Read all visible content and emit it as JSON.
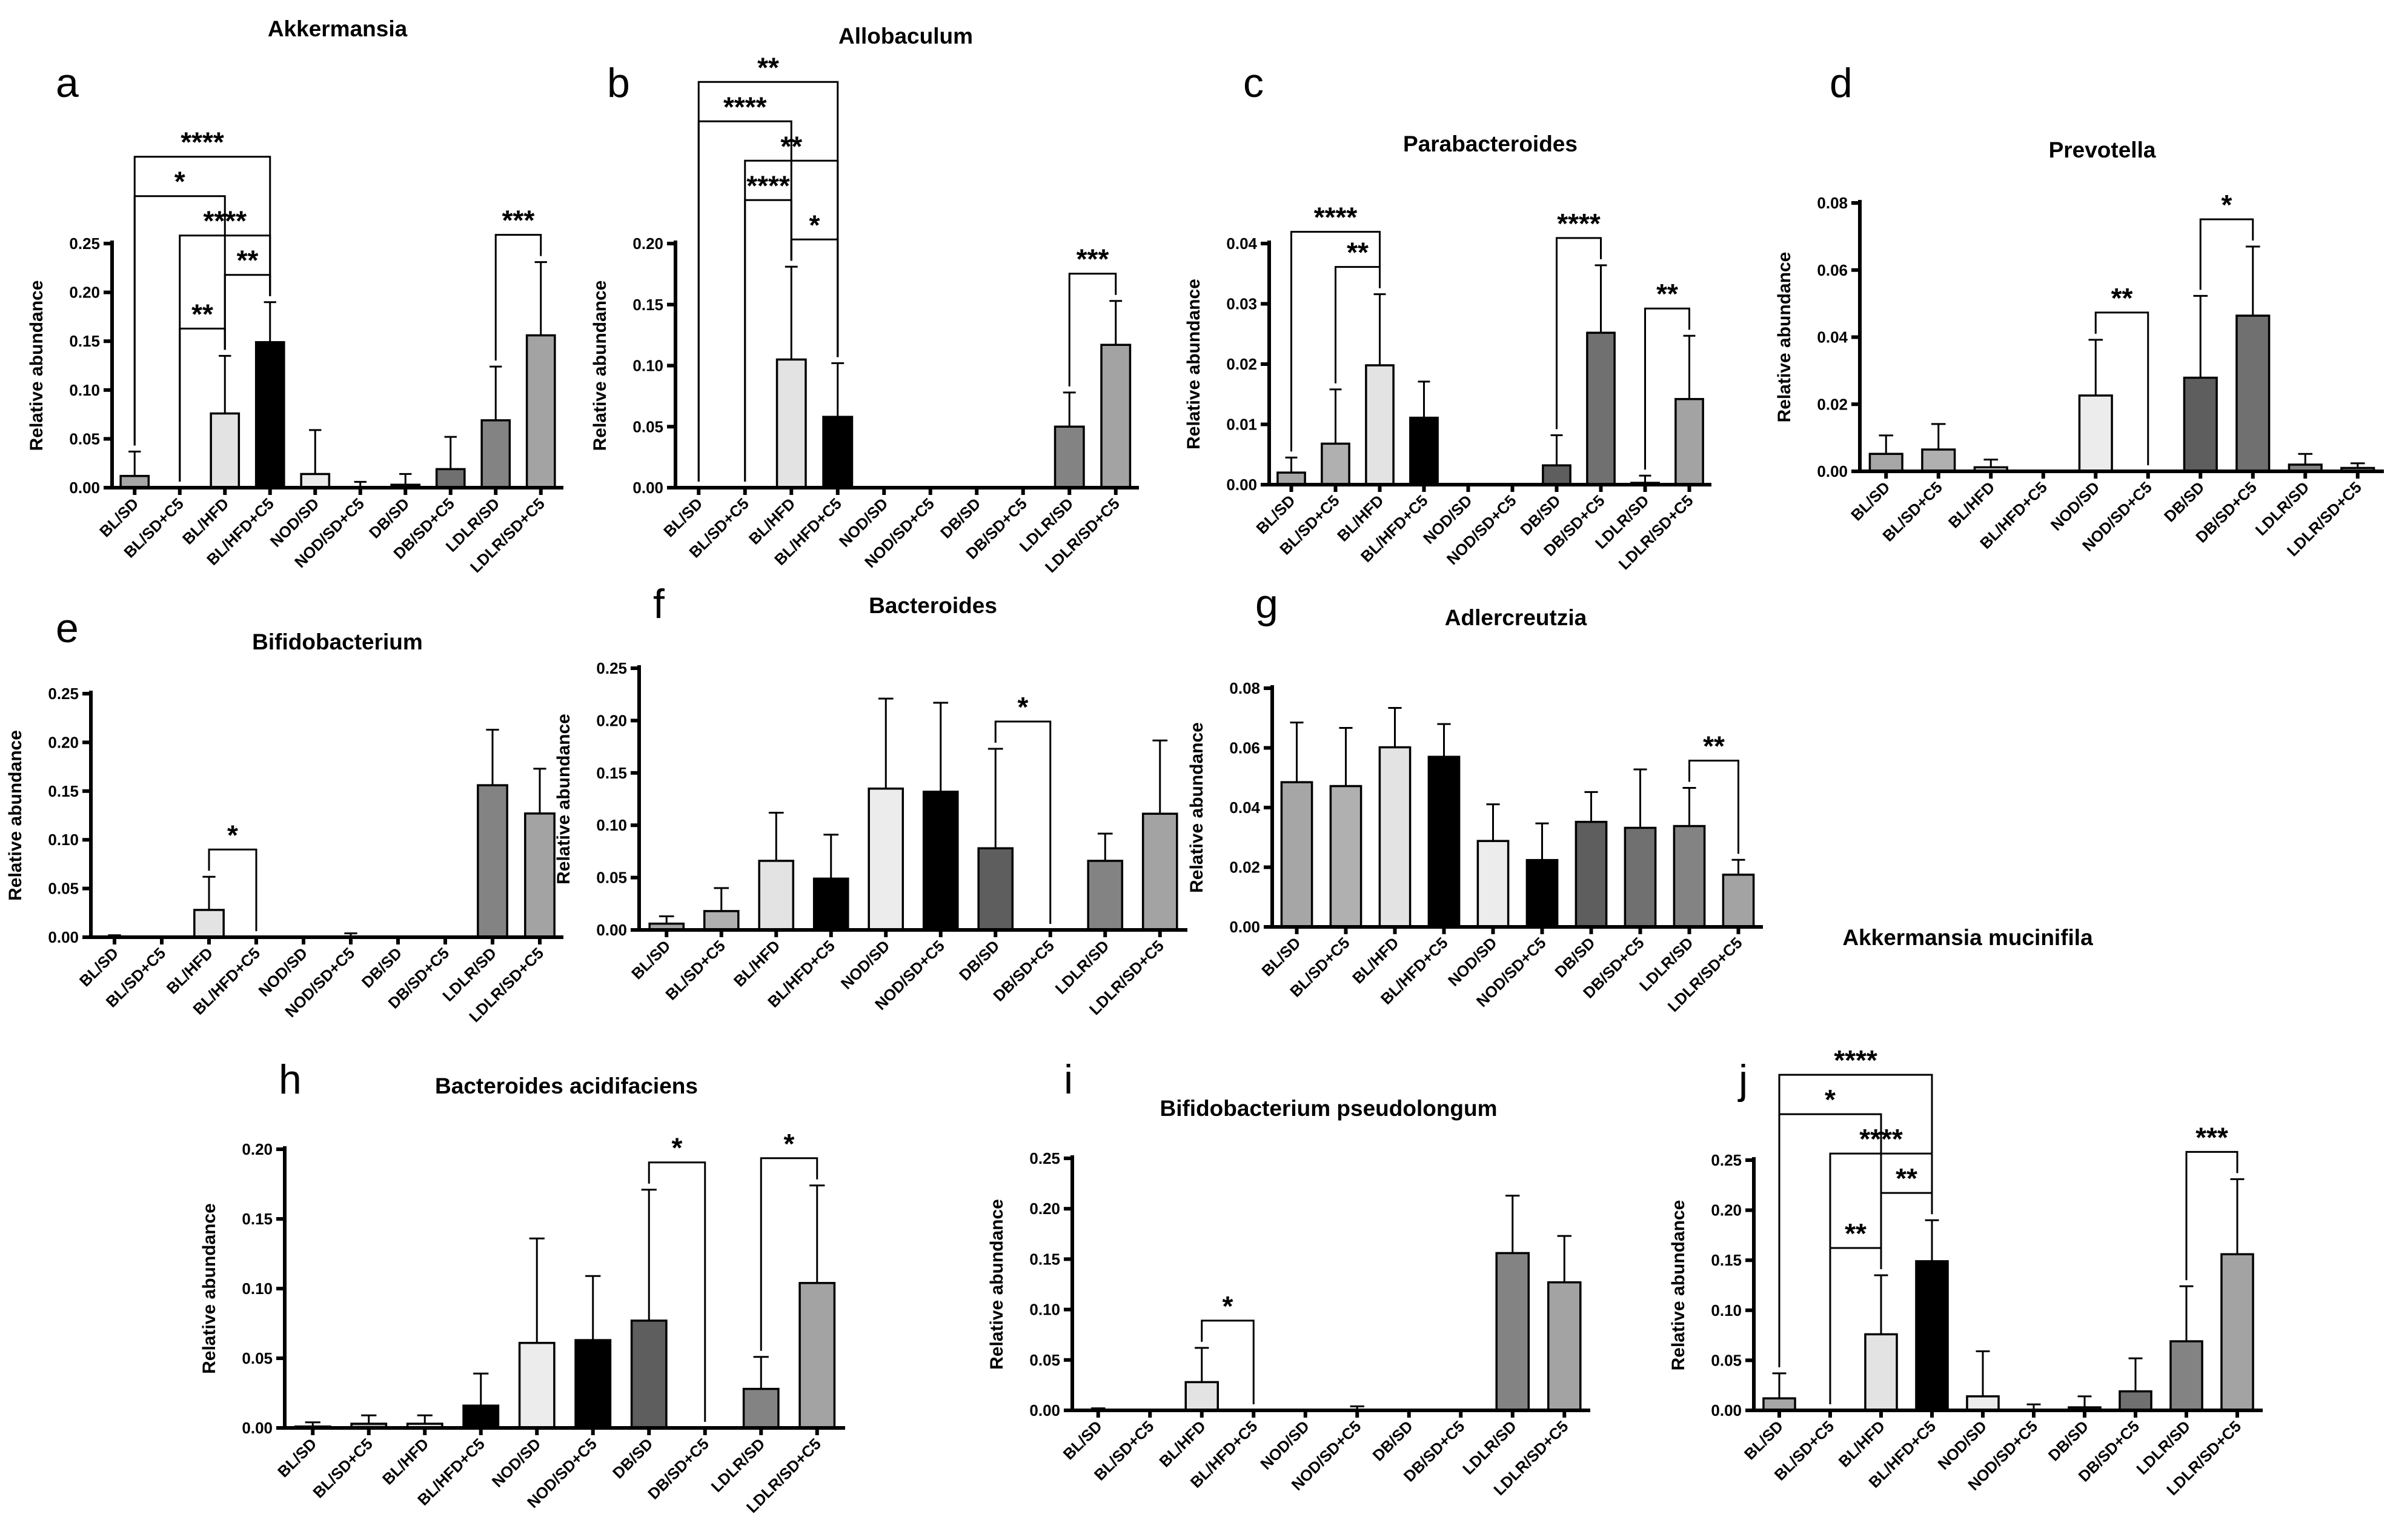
{
  "categories": [
    "BL/SD",
    "BL/SD+C5",
    "BL/HFD",
    "BL/HFD+C5",
    "NOD/SD",
    "NOD/SD+C5",
    "DB/SD",
    "DB/SD+C5",
    "LDLR/SD",
    "LDLR/SD+C5"
  ],
  "colors": [
    "#a6a6a6",
    "#b0b0b0",
    "#e3e3e3",
    "#000000",
    "#ececec",
    "#000000",
    "#5e5e5e",
    "#707070",
    "#838383",
    "#a3a3a3"
  ],
  "ylabel": "Relative abundance",
  "chart_data": [
    {
      "panel": "a",
      "type": "bar",
      "title": "Akkermansia",
      "yticks": [
        "0.00",
        "0.05",
        "0.10",
        "0.15",
        "0.20",
        "0.25"
      ],
      "ymax": 0.25,
      "values": [
        0.012,
        0,
        0.076,
        0.149,
        0.014,
        0,
        0.003,
        0.019,
        0.069,
        0.156
      ],
      "errors": [
        0.025,
        0,
        0.059,
        0.041,
        0.045,
        0.006,
        0.011,
        0.033,
        0.055,
        0.075
      ],
      "brackets": [
        {
          "a": 0,
          "b": 3,
          "label": "****"
        },
        {
          "a": 1,
          "b": 3,
          "label": "****"
        },
        {
          "a": 0,
          "b": 2,
          "label": "*"
        },
        {
          "a": 1,
          "b": 2,
          "label": "**"
        },
        {
          "a": 2,
          "b": 3,
          "label": "**"
        },
        {
          "a": 8,
          "b": 9,
          "label": "***"
        }
      ]
    },
    {
      "panel": "b",
      "type": "bar",
      "title": "Allobaculum",
      "yticks": [
        "0.00",
        "0.05",
        "0.10",
        "0.15",
        "0.20"
      ],
      "ymax": 0.2,
      "values": [
        0,
        0,
        0.105,
        0.058,
        0,
        0,
        0,
        0,
        0.05,
        0.117
      ],
      "errors": [
        0,
        0,
        0.076,
        0.044,
        0,
        0,
        0,
        0,
        0.028,
        0.036
      ],
      "brackets": [
        {
          "a": 0,
          "b": 3,
          "label": "**"
        },
        {
          "a": 1,
          "b": 3,
          "label": "**"
        },
        {
          "a": 0,
          "b": 2,
          "label": "****"
        },
        {
          "a": 2,
          "b": 3,
          "label": "*"
        },
        {
          "a": 1,
          "b": 2,
          "label": "****"
        },
        {
          "a": 8,
          "b": 9,
          "label": "***"
        }
      ]
    },
    {
      "panel": "c",
      "type": "bar",
      "title": "Parabacteroides",
      "yticks": [
        "0.00",
        "0.01",
        "0.02",
        "0.03",
        "0.04"
      ],
      "ymax": 0.04,
      "values": [
        0.002,
        0.0068,
        0.0198,
        0.0111,
        0,
        0,
        0.0032,
        0.0252,
        0.0003,
        0.0142
      ],
      "errors": [
        0.0025,
        0.009,
        0.0118,
        0.006,
        0,
        0,
        0.005,
        0.0112,
        0.0012,
        0.0105
      ],
      "brackets": [
        {
          "a": 0,
          "b": 2,
          "label": "****"
        },
        {
          "a": 1,
          "b": 2,
          "label": "**"
        },
        {
          "a": 6,
          "b": 7,
          "label": "****"
        },
        {
          "a": 8,
          "b": 9,
          "label": "**"
        }
      ]
    },
    {
      "panel": "d",
      "type": "bar",
      "title": "Prevotella",
      "yticks": [
        "0.00",
        "0.02",
        "0.04",
        "0.06",
        "0.08"
      ],
      "ymax": 0.08,
      "values": [
        0.0052,
        0.0065,
        0.0012,
        0,
        0.0226,
        0,
        0.0279,
        0.0464,
        0.002,
        0.001
      ],
      "errors": [
        0.0055,
        0.0076,
        0.0023,
        0,
        0.0166,
        0,
        0.0244,
        0.0206,
        0.0032,
        0.0014
      ],
      "brackets": [
        {
          "a": 4,
          "b": 5,
          "label": "**"
        },
        {
          "a": 6,
          "b": 7,
          "label": "*"
        }
      ]
    },
    {
      "panel": "e",
      "type": "bar",
      "title": "Bifidobacterium",
      "yticks": [
        "0.00",
        "0.05",
        "0.10",
        "0.15",
        "0.20",
        "0.25"
      ],
      "ymax": 0.25,
      "values": [
        0,
        0,
        0.028,
        0,
        0,
        0,
        0,
        0,
        0.156,
        0.127
      ],
      "errors": [
        0.002,
        0,
        0.034,
        0,
        0,
        0.004,
        0,
        0,
        0.057,
        0.046
      ],
      "brackets": [
        {
          "a": 2,
          "b": 3,
          "label": "*"
        }
      ]
    },
    {
      "panel": "f",
      "type": "bar",
      "title": "Bacteroides",
      "yticks": [
        "0.00",
        "0.05",
        "0.10",
        "0.15",
        "0.20",
        "0.25"
      ],
      "ymax": 0.25,
      "values": [
        0.006,
        0.018,
        0.066,
        0.049,
        0.135,
        0.132,
        0.078,
        0,
        0.066,
        0.111
      ],
      "errors": [
        0.007,
        0.022,
        0.046,
        0.042,
        0.086,
        0.085,
        0.095,
        0,
        0.026,
        0.07
      ],
      "brackets": [
        {
          "a": 6,
          "b": 7,
          "label": "*"
        }
      ]
    },
    {
      "panel": "g",
      "type": "bar",
      "title": "Adlercreutzia",
      "yticks": [
        "0.00",
        "0.02",
        "0.04",
        "0.06",
        "0.08"
      ],
      "ymax": 0.08,
      "values": [
        0.0485,
        0.0472,
        0.0602,
        0.057,
        0.0288,
        0.0224,
        0.0352,
        0.0332,
        0.0338,
        0.0175
      ],
      "errors": [
        0.02,
        0.0195,
        0.0132,
        0.011,
        0.0123,
        0.0123,
        0.01,
        0.0196,
        0.0128,
        0.005
      ],
      "brackets": [
        {
          "a": 8,
          "b": 9,
          "label": "**"
        }
      ]
    },
    {
      "panel": "h",
      "type": "bar",
      "title": "Bacteroides acidifaciens",
      "yticks": [
        "0.00",
        "0.05",
        "0.10",
        "0.15",
        "0.20"
      ],
      "ymax": 0.2,
      "values": [
        0.001,
        0.003,
        0.003,
        0.016,
        0.061,
        0.063,
        0.077,
        0,
        0.028,
        0.104
      ],
      "errors": [
        0.003,
        0.006,
        0.006,
        0.023,
        0.075,
        0.046,
        0.094,
        0,
        0.023,
        0.07
      ],
      "brackets": [
        {
          "a": 6,
          "b": 7,
          "label": "*"
        },
        {
          "a": 8,
          "b": 9,
          "label": "*"
        }
      ]
    },
    {
      "panel": "i",
      "type": "bar",
      "title": "Bifidobacterium pseudolongum",
      "yticks": [
        "0.00",
        "0.05",
        "0.10",
        "0.15",
        "0.20",
        "0.25"
      ],
      "ymax": 0.25,
      "values": [
        0,
        0,
        0.028,
        0,
        0,
        0,
        0,
        0,
        0.156,
        0.127
      ],
      "errors": [
        0.002,
        0,
        0.034,
        0,
        0,
        0.004,
        0,
        0,
        0.057,
        0.046
      ],
      "brackets": [
        {
          "a": 2,
          "b": 3,
          "label": "*"
        }
      ]
    },
    {
      "panel": "j",
      "type": "bar",
      "title": "Akkermansia mucinifila",
      "yticks": [
        "0.00",
        "0.05",
        "0.10",
        "0.15",
        "0.20",
        "0.25"
      ],
      "ymax": 0.25,
      "values": [
        0.012,
        0,
        0.076,
        0.149,
        0.014,
        0,
        0.003,
        0.019,
        0.069,
        0.156
      ],
      "errors": [
        0.025,
        0,
        0.059,
        0.041,
        0.045,
        0.006,
        0.011,
        0.033,
        0.055,
        0.075
      ],
      "brackets": [
        {
          "a": 0,
          "b": 3,
          "label": "****"
        },
        {
          "a": 1,
          "b": 3,
          "label": "****"
        },
        {
          "a": 0,
          "b": 2,
          "label": "*"
        },
        {
          "a": 1,
          "b": 2,
          "label": "**"
        },
        {
          "a": 2,
          "b": 3,
          "label": "**"
        },
        {
          "a": 8,
          "b": 9,
          "label": "***"
        }
      ]
    }
  ]
}
